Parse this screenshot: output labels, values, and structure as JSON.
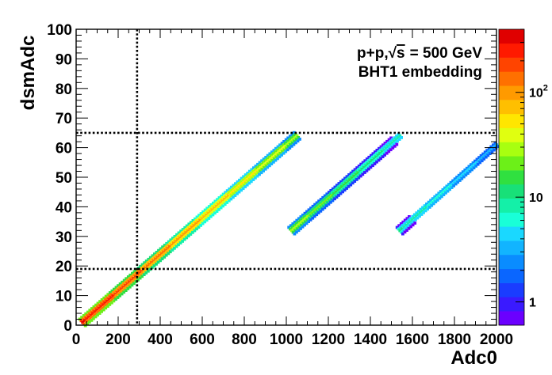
{
  "chart_data": {
    "type": "heatmap",
    "xlabel": "Adc0",
    "ylabel": "dsmAdc",
    "xlim": [
      0,
      2000
    ],
    "ylim": [
      0,
      100
    ],
    "xticks": [
      "0",
      "200",
      "400",
      "600",
      "800",
      "1000",
      "1200",
      "1400",
      "1600",
      "1800",
      "2000"
    ],
    "yticks": [
      "0",
      "10",
      "20",
      "30",
      "40",
      "50",
      "60",
      "70",
      "80",
      "90",
      "100"
    ],
    "annotation_lines": [
      "p+p, √s = 500 GeV",
      "BHT1 embedding"
    ],
    "annotation_parts": {
      "prefix": "p+p,",
      "radicand": "s",
      "suffix": "= 500 GeV",
      "line2": "BHT1 embedding"
    },
    "threshold_lines": {
      "x": 290,
      "y": [
        19,
        65
      ]
    },
    "colorbar": {
      "scale": "log",
      "range": [
        0.6,
        400
      ],
      "ticks": [
        {
          "value": 1,
          "label": "1"
        },
        {
          "value": 10,
          "label": "10"
        },
        {
          "value": 100,
          "base": "10",
          "exponent": "2"
        }
      ],
      "colors": [
        "#6b00ff",
        "#3a1aff",
        "#1a3cff",
        "#0a66ff",
        "#0a8cff",
        "#12b4ff",
        "#1ad8ff",
        "#19ffd8",
        "#14f0a8",
        "#18e078",
        "#30e040",
        "#6cf018",
        "#a8ff10",
        "#e0ff10",
        "#ffe600",
        "#ffbf00",
        "#ff9a00",
        "#ff7000",
        "#ff4400",
        "#ff1a00",
        "#e00000"
      ]
    },
    "series": [
      {
        "segment": "band-1",
        "x_range": [
          30,
          1050
        ],
        "y_range": [
          1,
          64
        ],
        "peak_counts": 300,
        "tail_counts": 30
      },
      {
        "segment": "band-2",
        "x_range": [
          1025,
          1540
        ],
        "y_range": [
          32,
          64
        ],
        "peak_counts": 30,
        "tail_counts": 8
      },
      {
        "segment": "band-3",
        "x_range": [
          1540,
          2000
        ],
        "y_range": [
          32,
          61
        ],
        "peak_counts": 10,
        "tail_counts": 3
      }
    ]
  }
}
